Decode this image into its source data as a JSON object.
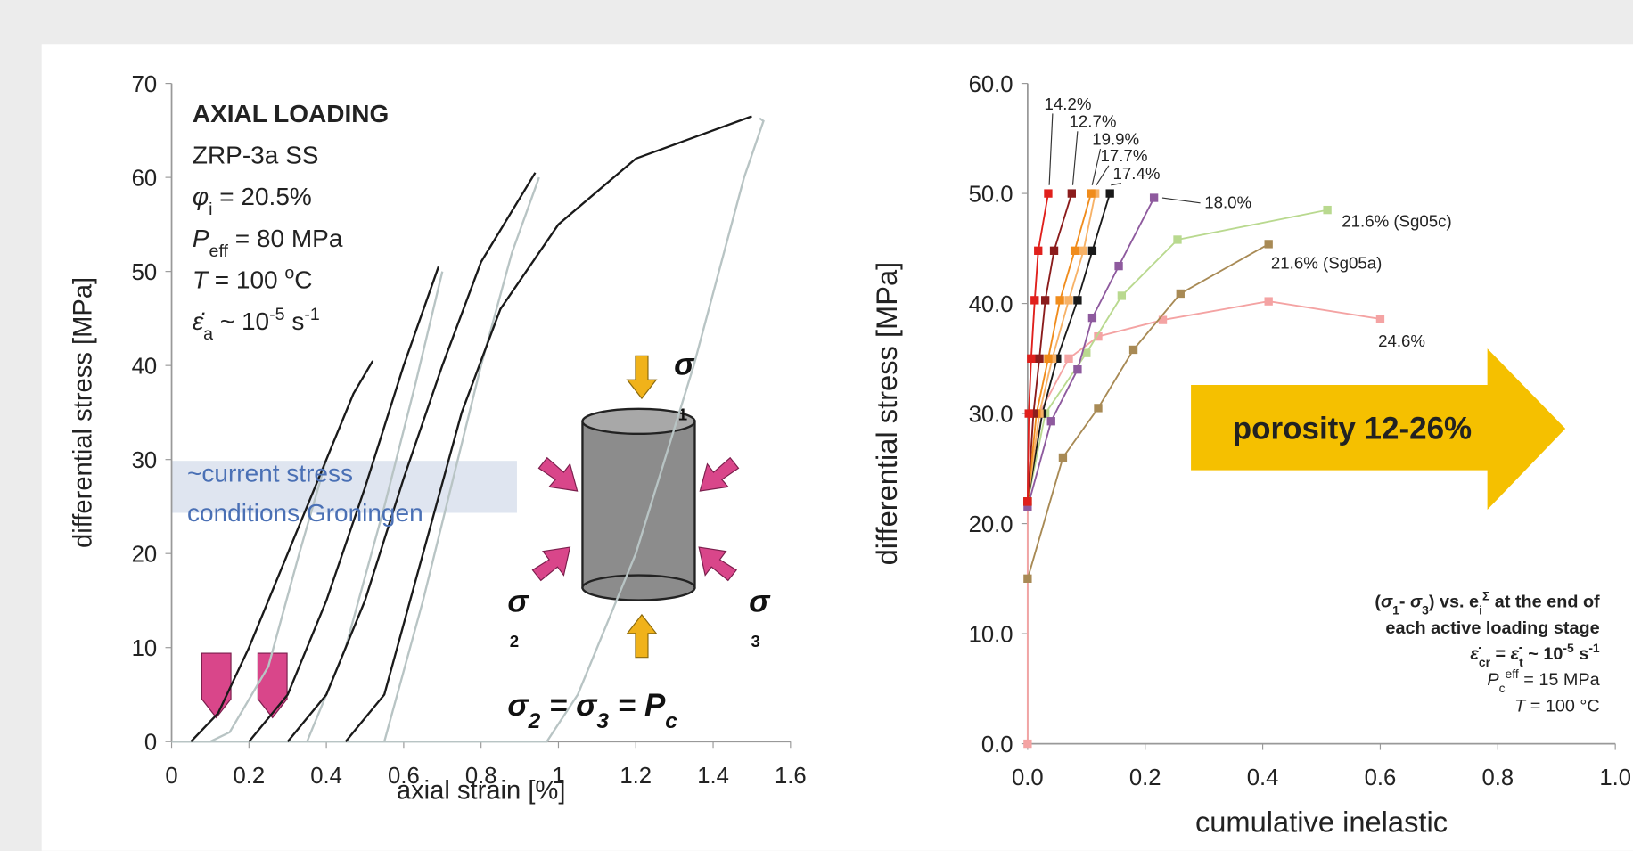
{
  "chart_data": [
    {
      "type": "line",
      "xlabel": "axial strain [%]",
      "ylabel": "differential stress [MPa]",
      "xlim": [
        0,
        1.6
      ],
      "ylim": [
        0,
        70
      ],
      "xticks": [
        0,
        0.2,
        0.4,
        0.6,
        0.8,
        1,
        1.2,
        1.4,
        1.6
      ],
      "yticks": [
        0,
        10,
        20,
        30,
        40,
        50,
        60,
        70
      ],
      "series": [
        {
          "color": "#b8c4c4",
          "x": [
            0,
            0.1,
            0.15,
            0.25,
            0.33,
            0.4
          ],
          "values": [
            0,
            0,
            1,
            8,
            20,
            30
          ]
        },
        {
          "color": "#b8c4c4",
          "x": [
            0.35,
            0.45,
            0.55,
            0.63,
            0.7
          ],
          "values": [
            0,
            10,
            25,
            38,
            50
          ]
        },
        {
          "color": "#b8c4c4",
          "x": [
            0.55,
            0.65,
            0.8,
            0.88,
            0.95
          ],
          "values": [
            0,
            15,
            40,
            52,
            60
          ]
        },
        {
          "color": "#b8c4c4",
          "x": [
            0,
            0.97,
            1.05,
            1.2,
            1.35,
            1.48,
            1.53,
            1.52
          ],
          "values": [
            0,
            0,
            5,
            20,
            40,
            60,
            66,
            66.3
          ]
        },
        {
          "color": "#1a1a1a",
          "x": [
            0.05,
            0.12,
            0.2,
            0.3,
            0.4,
            0.47,
            0.52
          ],
          "values": [
            0,
            3,
            10,
            20,
            30,
            37,
            40.5
          ]
        },
        {
          "color": "#1a1a1a",
          "x": [
            0.2,
            0.3,
            0.4,
            0.5,
            0.6,
            0.69
          ],
          "values": [
            0,
            5,
            15,
            27,
            40,
            50.5
          ]
        },
        {
          "color": "#1a1a1a",
          "x": [
            0.3,
            0.4,
            0.5,
            0.6,
            0.7,
            0.8,
            0.94
          ],
          "values": [
            0,
            5,
            15,
            28,
            40,
            51,
            60.5
          ]
        },
        {
          "color": "#1a1a1a",
          "x": [
            0.45,
            0.55,
            0.65,
            0.75,
            0.85,
            1.0,
            1.2,
            1.5
          ],
          "values": [
            0,
            5,
            20,
            35,
            46,
            55,
            62,
            66.5
          ]
        }
      ],
      "annotations": {
        "info": [
          [
            {
              "t": "AXIAL LOADING"
            }
          ],
          [
            {
              "t": "ZRP-3a SS"
            }
          ],
          [
            {
              "i": "φ"
            },
            {
              "sub": "i"
            },
            {
              "t": " = 20.5%"
            }
          ],
          [
            {
              "i": "P"
            },
            {
              "sub": "eff"
            },
            {
              "t": " = 80 MPa"
            }
          ],
          [
            {
              "i": "T"
            },
            {
              "t": " = 100 "
            },
            {
              "sup": "o"
            },
            {
              "t": "C"
            }
          ],
          [
            {
              "i": "ε̇"
            },
            {
              "sub": "a"
            },
            {
              "t": " ~ 10"
            },
            {
              "sup": "-5"
            },
            {
              "t": " s"
            },
            {
              "sup": "-1"
            }
          ]
        ],
        "note": [
          "~current stress",
          "conditions Groningen"
        ],
        "sigma1": [
          [
            {
              "t": "σ"
            }
          ],
          [
            {
              "t": "1"
            }
          ]
        ],
        "sigma2": [
          [
            {
              "t": "σ"
            }
          ],
          [
            {
              "t": "2"
            }
          ]
        ],
        "sigma3": [
          [
            {
              "t": "σ"
            }
          ],
          [
            {
              "t": "3"
            }
          ]
        ],
        "equation": [
          {
            "t": "σ"
          },
          {
            "sub": "2"
          },
          {
            "t": " = σ"
          },
          {
            "sub": "3"
          },
          {
            "t": " = P"
          },
          {
            "sub": "c"
          }
        ]
      }
    },
    {
      "type": "line",
      "xlabel": "cumulative inelastic",
      "ylabel": "differential stress [MPa]",
      "xlim": [
        0,
        1
      ],
      "ylim": [
        0,
        60
      ],
      "xticks": [
        {
          "value": 0,
          "label": "0.0"
        },
        0.2,
        0.4,
        0.6,
        0.8,
        {
          "value": 1,
          "label": "1.0"
        }
      ],
      "yticks": [
        {
          "value": 0,
          "label": "0.0"
        },
        {
          "value": 10,
          "label": "10.0"
        },
        {
          "value": 20,
          "label": "20.0"
        },
        {
          "value": 30,
          "label": "30.0"
        },
        {
          "value": 40,
          "label": "40.0"
        },
        {
          "value": 50,
          "label": "50.0"
        },
        {
          "value": 60,
          "label": "60.0"
        }
      ],
      "marker": "square",
      "series": [
        {
          "name": "24.6%",
          "color": "#f4a3a3",
          "x": [
            0,
            0,
            0.02,
            0.07,
            0.12,
            0.23,
            0.41,
            0.6
          ],
          "values": [
            0,
            22,
            30,
            35,
            37,
            38.5,
            40.2,
            38.6
          ]
        },
        {
          "name": "21.6% (Sg05a)",
          "color": "#a88a55",
          "x": [
            0,
            0.06,
            0.12,
            0.18,
            0.26,
            0.41
          ],
          "values": [
            15,
            26,
            30.5,
            35.8,
            40.9,
            45.4
          ]
        },
        {
          "name": "21.6% (Sg05c)",
          "color": "#b9d98f",
          "x": [
            0,
            0.03,
            0.1,
            0.16,
            0.255,
            0.51
          ],
          "values": [
            22,
            30,
            35.5,
            40.7,
            45.8,
            48.5
          ]
        },
        {
          "name": "18.0%",
          "color": "#8e5a9e",
          "x": [
            0,
            0.04,
            0.085,
            0.11,
            0.155,
            0.215
          ],
          "values": [
            21.5,
            29.3,
            34,
            38.7,
            43.4,
            49.6
          ]
        },
        {
          "name": "17.4%",
          "color": "#1a1a1a",
          "x": [
            0,
            0.025,
            0.05,
            0.085,
            0.11,
            0.14
          ],
          "values": [
            22,
            30,
            35,
            40.3,
            44.8,
            50
          ]
        },
        {
          "name": "17.7%",
          "color": "#f7b267",
          "x": [
            0,
            0.02,
            0.042,
            0.07,
            0.095,
            0.115
          ],
          "values": [
            22,
            30,
            35,
            40.3,
            44.8,
            50
          ]
        },
        {
          "name": "19.9%",
          "color": "#f08c1c",
          "x": [
            0,
            0.015,
            0.035,
            0.055,
            0.08,
            0.108
          ],
          "values": [
            22,
            30,
            35,
            40.3,
            44.8,
            50
          ]
        },
        {
          "name": "12.7%",
          "color": "#8b1c1c",
          "x": [
            0,
            0.01,
            0.02,
            0.03,
            0.045,
            0.075
          ],
          "values": [
            22,
            30,
            35,
            40.3,
            44.8,
            50
          ]
        },
        {
          "name": "14.2%",
          "color": "#e0201c",
          "x": [
            0,
            0.002,
            0.006,
            0.012,
            0.018,
            0.035
          ],
          "values": [
            22,
            30,
            35,
            40.3,
            44.8,
            50
          ]
        }
      ],
      "annotations": {
        "arrow": "porosity 12-26%",
        "box": [
          [
            {
              "t": "("
            },
            {
              "i": "σ"
            },
            {
              "sub": "1"
            },
            {
              "t": "- "
            },
            {
              "i": "σ"
            },
            {
              "sub": "3"
            },
            {
              "t": ") vs. e"
            },
            {
              "sub": "i"
            },
            {
              "sup": "Σ"
            },
            {
              "t": " at the end of"
            }
          ],
          [
            {
              "t": "each active loading stage"
            }
          ],
          [
            {
              "i": "ε̇"
            },
            {
              "sub": "cr"
            },
            {
              "t": " = "
            },
            {
              "i": "ε̇"
            },
            {
              "sub": "t"
            },
            {
              "t": " ~ 10"
            },
            {
              "sup": "-5"
            },
            {
              "t": " s"
            },
            {
              "sup": "-1"
            }
          ],
          [
            {
              "i": "P"
            },
            {
              "sub": "c"
            },
            {
              "sup": "eff"
            },
            {
              "t": " = 15 MPa"
            }
          ],
          [
            {
              "i": "T"
            },
            {
              "t": " = 100 °C"
            }
          ]
        ]
      }
    }
  ]
}
